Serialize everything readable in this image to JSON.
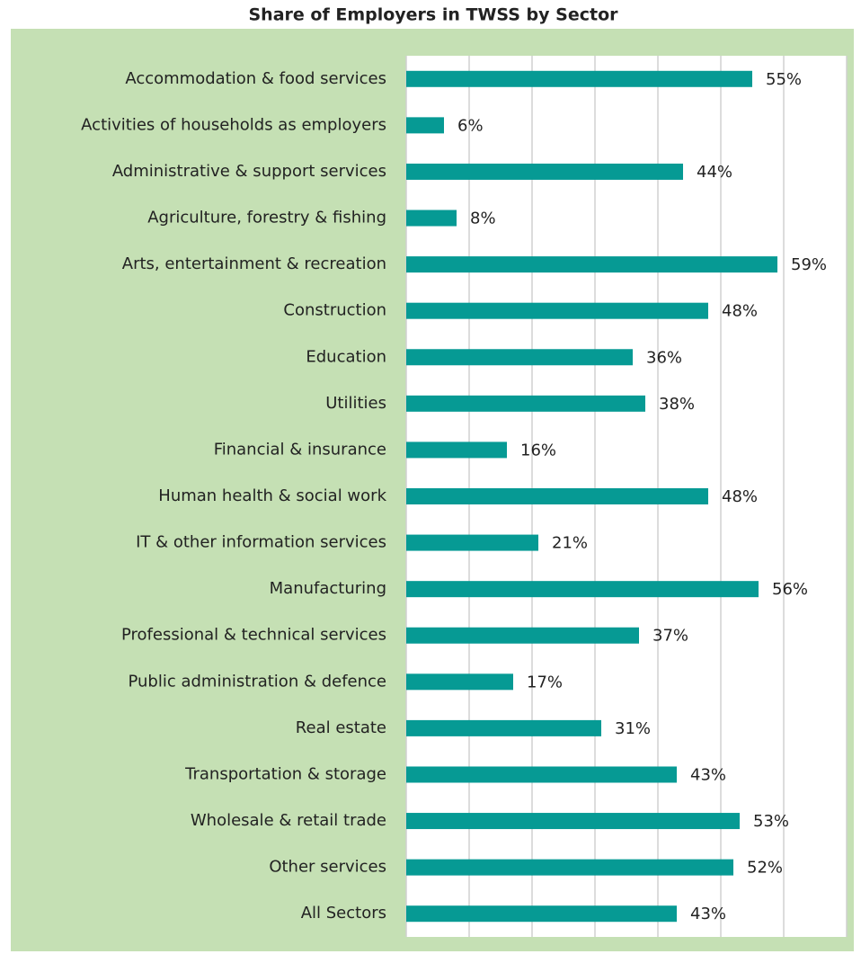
{
  "chart_data": {
    "type": "bar",
    "orientation": "horizontal",
    "title": "Share of Employers in TWSS by Sector",
    "categories": [
      "Accommodation & food services",
      "Activities of households as employers",
      "Administrative & support services",
      "Agriculture, forestry & fishing",
      "Arts, entertainment & recreation",
      "Construction",
      "Education",
      "Utilities",
      "Financial & insurance",
      "Human health & social work",
      "IT & other information services",
      "Manufacturing",
      "Professional & technical services",
      "Public administration & defence",
      "Real estate",
      "Transportation & storage",
      "Wholesale & retail trade",
      "Other services",
      "All Sectors"
    ],
    "values": [
      55,
      6,
      44,
      8,
      59,
      48,
      36,
      38,
      16,
      48,
      21,
      56,
      37,
      17,
      31,
      43,
      53,
      52,
      43
    ],
    "value_labels": [
      "55%",
      "6%",
      "44%",
      "8%",
      "59%",
      "48%",
      "36%",
      "38%",
      "16%",
      "48%",
      "21%",
      "56%",
      "37%",
      "17%",
      "31%",
      "43%",
      "53%",
      "52%",
      "43%"
    ],
    "color": "#069a94",
    "xlim": [
      0,
      70
    ],
    "xticks": [
      0,
      10,
      20,
      30,
      40,
      50,
      60,
      70
    ],
    "grid": true
  }
}
